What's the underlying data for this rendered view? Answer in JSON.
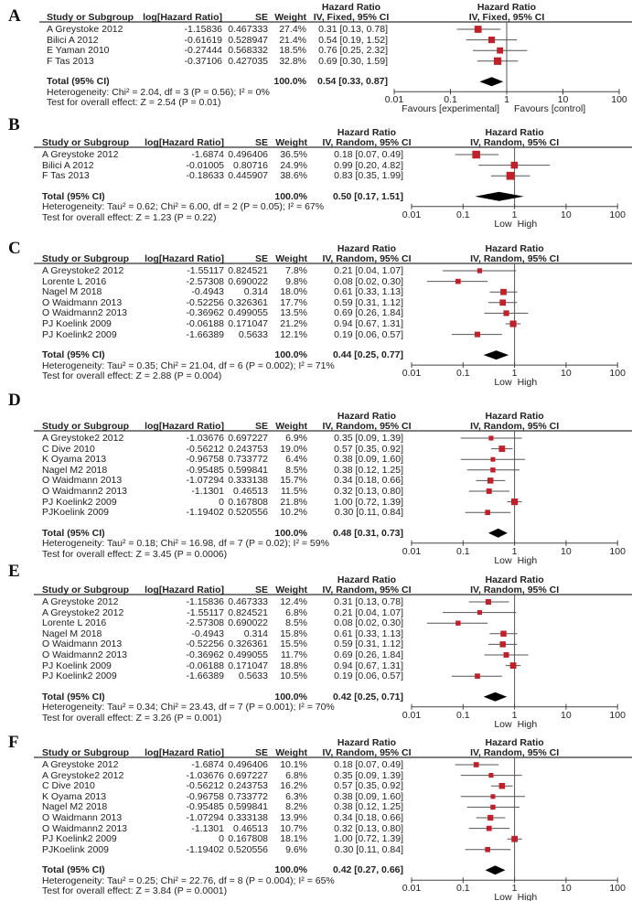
{
  "columns": {
    "study": "Study or Subgroup",
    "loghr": "log[Hazard Ratio]",
    "se": "SE",
    "weight": "Weight",
    "hr_title": "Hazard Ratio",
    "total_label": "Total (95% CI)"
  },
  "colors": {
    "square": "#c0202a",
    "ci_line": "#555555",
    "diamond": "#000000",
    "axis": "#444444"
  },
  "chart_data": [
    {
      "type": "forest",
      "letter": "A",
      "method": "IV, Fixed, 95% CI",
      "xscale": "log",
      "xlim": [
        0.01,
        100
      ],
      "ticks": [
        "0.01",
        "0.1",
        "1",
        "10",
        "100"
      ],
      "favours_left": "Favours [experimental]",
      "favours_right": "Favours [control]",
      "studies": [
        {
          "name": "A Greystoke 2012",
          "loghr": "-1.15836",
          "se": "0.467333",
          "weight": "27.4%",
          "ci": "0.31 [0.13, 0.78]"
        },
        {
          "name": "Bilici A 2012",
          "loghr": "-0.61619",
          "se": "0.528947",
          "weight": "21.4%",
          "ci": "0.54 [0.19, 1.52]"
        },
        {
          "name": "E Yaman 2010",
          "loghr": "-0.27444",
          "se": "0.568332",
          "weight": "18.5%",
          "ci": "0.76 [0.25, 2.32]"
        },
        {
          "name": "F Tas 2013",
          "loghr": "-0.37106",
          "se": "0.427035",
          "weight": "32.8%",
          "ci": "0.69 [0.30, 1.59]"
        }
      ],
      "total": {
        "weight": "100.0%",
        "ci": "0.54 [0.33, 0.87]"
      },
      "heterogeneity": "Heterogeneity: Chi² = 2.04, df = 3 (P = 0.56); I² = 0%",
      "overall": "Test for overall effect: Z = 2.54 (P = 0.01)"
    },
    {
      "type": "forest",
      "letter": "B",
      "method": "IV, Random, 95% CI",
      "xscale": "log",
      "xlim": [
        0.01,
        100
      ],
      "ticks": [
        "0.01",
        "0.1",
        "1",
        "10",
        "100"
      ],
      "favours_left": "Low",
      "favours_right": "High",
      "studies": [
        {
          "name": "A Greystoke 2012",
          "loghr": "-1.6874",
          "se": "0.496406",
          "weight": "36.5%",
          "ci": "0.18 [0.07, 0.49]"
        },
        {
          "name": "Bilici A 2012",
          "loghr": "-0.01005",
          "se": "0.80716",
          "weight": "24.9%",
          "ci": "0.99 [0.20, 4.82]"
        },
        {
          "name": "F Tas 2013",
          "loghr": "-0.18633",
          "se": "0.445907",
          "weight": "38.6%",
          "ci": "0.83 [0.35, 1.99]"
        }
      ],
      "total": {
        "weight": "100.0%",
        "ci": "0.50 [0.17, 1.51]"
      },
      "heterogeneity": "Heterogeneity: Tau² = 0.62; Chi² = 6.00, df = 2 (P = 0.05); I² = 67%",
      "overall": "Test for overall effect: Z = 1.23 (P = 0.22)"
    },
    {
      "type": "forest",
      "letter": "C",
      "method": "IV, Random, 95% CI",
      "xscale": "log",
      "xlim": [
        0.01,
        100
      ],
      "ticks": [
        "0.01",
        "0.1",
        "1",
        "10",
        "100"
      ],
      "favours_left": "Low",
      "favours_right": "High",
      "studies": [
        {
          "name": "A Greystoke2 2012",
          "loghr": "-1.55117",
          "se": "0.824521",
          "weight": "7.8%",
          "ci": "0.21 [0.04, 1.07]"
        },
        {
          "name": "Lorente L 2016",
          "loghr": "-2.57308",
          "se": "0.690022",
          "weight": "9.8%",
          "ci": "0.08 [0.02, 0.30]"
        },
        {
          "name": "Nagel M 2018",
          "loghr": "-0.4943",
          "se": "0.314",
          "weight": "18.0%",
          "ci": "0.61 [0.33, 1.13]"
        },
        {
          "name": "O Waidmann 2013",
          "loghr": "-0.52256",
          "se": "0.326361",
          "weight": "17.7%",
          "ci": "0.59 [0.31, 1.12]"
        },
        {
          "name": "O Waidmann2 2013",
          "loghr": "-0.36962",
          "se": "0.499055",
          "weight": "13.5%",
          "ci": "0.69 [0.26, 1.84]"
        },
        {
          "name": "PJ Koelink 2009",
          "loghr": "-0.06188",
          "se": "0.171047",
          "weight": "21.2%",
          "ci": "0.94 [0.67, 1.31]"
        },
        {
          "name": "PJ Koelink2 2009",
          "loghr": "-1.66389",
          "se": "0.5633",
          "weight": "12.1%",
          "ci": "0.19 [0.06, 0.57]"
        }
      ],
      "total": {
        "weight": "100.0%",
        "ci": "0.44 [0.25, 0.77]"
      },
      "heterogeneity": "Heterogeneity: Tau² = 0.35; Chi² = 21.04, df = 6 (P = 0.002); I² = 71%",
      "overall": "Test for overall effect: Z = 2.88 (P = 0.004)"
    },
    {
      "type": "forest",
      "letter": "D",
      "method": "IV, Random, 95% CI",
      "xscale": "log",
      "xlim": [
        0.01,
        100
      ],
      "ticks": [
        "0.01",
        "0.1",
        "1",
        "10",
        "100"
      ],
      "favours_left": "Low",
      "favours_right": "High",
      "studies": [
        {
          "name": "A Greystoke2 2012",
          "loghr": "-1.03676",
          "se": "0.697227",
          "weight": "6.9%",
          "ci": "0.35 [0.09, 1.39]"
        },
        {
          "name": "C Dive 2010",
          "loghr": "-0.56212",
          "se": "0.243753",
          "weight": "19.0%",
          "ci": "0.57 [0.35, 0.92]"
        },
        {
          "name": "K Oyama 2013",
          "loghr": "-0.96758",
          "se": "0.733772",
          "weight": "6.4%",
          "ci": "0.38 [0.09, 1.60]"
        },
        {
          "name": "Nagel M2 2018",
          "loghr": "-0.95485",
          "se": "0.599841",
          "weight": "8.5%",
          "ci": "0.38 [0.12, 1.25]"
        },
        {
          "name": "O Waidmann 2013",
          "loghr": "-1.07294",
          "se": "0.333138",
          "weight": "15.7%",
          "ci": "0.34 [0.18, 0.66]"
        },
        {
          "name": "O Waidmann2 2013",
          "loghr": "-1.1301",
          "se": "0.46513",
          "weight": "11.5%",
          "ci": "0.32 [0.13, 0.80]"
        },
        {
          "name": "PJ Koelink2 2009",
          "loghr": "0",
          "se": "0.167808",
          "weight": "21.8%",
          "ci": "1.00 [0.72, 1.39]"
        },
        {
          "name": "PJKoelink 2009",
          "loghr": "-1.19402",
          "se": "0.520556",
          "weight": "10.2%",
          "ci": "0.30 [0.11, 0.84]"
        }
      ],
      "total": {
        "weight": "100.0%",
        "ci": "0.48 [0.31, 0.73]"
      },
      "heterogeneity": "Heterogeneity: Tau² = 0.18; Chi² = 16.98, df = 7 (P = 0.02); I² = 59%",
      "overall": "Test for overall effect: Z = 3.45 (P = 0.0006)"
    },
    {
      "type": "forest",
      "letter": "E",
      "method": "IV, Random, 95% CI",
      "xscale": "log",
      "xlim": [
        0.01,
        100
      ],
      "ticks": [
        "0.01",
        "0.1",
        "1",
        "10",
        "100"
      ],
      "favours_left": "Low",
      "favours_right": "High",
      "studies": [
        {
          "name": "A Greystoke 2012",
          "loghr": "-1.15836",
          "se": "0.467333",
          "weight": "12.4%",
          "ci": "0.31 [0.13, 0.78]"
        },
        {
          "name": "A Greystoke2 2012",
          "loghr": "-1.55117",
          "se": "0.824521",
          "weight": "6.8%",
          "ci": "0.21 [0.04, 1.07]"
        },
        {
          "name": "Lorente L 2016",
          "loghr": "-2.57308",
          "se": "0.690022",
          "weight": "8.5%",
          "ci": "0.08 [0.02, 0.30]"
        },
        {
          "name": "Nagel M 2018",
          "loghr": "-0.4943",
          "se": "0.314",
          "weight": "15.8%",
          "ci": "0.61 [0.33, 1.13]"
        },
        {
          "name": "O Waidmann 2013",
          "loghr": "-0.52256",
          "se": "0.326361",
          "weight": "15.5%",
          "ci": "0.59 [0.31, 1.12]"
        },
        {
          "name": "O Waidmann2 2013",
          "loghr": "-0.36962",
          "se": "0.499055",
          "weight": "11.7%",
          "ci": "0.69 [0.26, 1.84]"
        },
        {
          "name": "PJ Koelink 2009",
          "loghr": "-0.06188",
          "se": "0.171047",
          "weight": "18.8%",
          "ci": "0.94 [0.67, 1.31]"
        },
        {
          "name": "PJ Koelink2 2009",
          "loghr": "-1.66389",
          "se": "0.5633",
          "weight": "10.5%",
          "ci": "0.19 [0.06, 0.57]"
        }
      ],
      "total": {
        "weight": "100.0%",
        "ci": "0.42 [0.25, 0.71]"
      },
      "heterogeneity": "Heterogeneity: Tau² = 0.34; Chi² = 23.43, df = 7 (P = 0.001); I² = 70%",
      "overall": "Test for overall effect: Z = 3.26 (P = 0.001)"
    },
    {
      "type": "forest",
      "letter": "F",
      "method": "IV, Random, 95% CI",
      "xscale": "log",
      "xlim": [
        0.01,
        100
      ],
      "ticks": [
        "0.01",
        "0.1",
        "1",
        "10",
        "100"
      ],
      "favours_left": "Low",
      "favours_right": "High",
      "studies": [
        {
          "name": "A Greystoke 2012",
          "loghr": "-1.6874",
          "se": "0.496406",
          "weight": "10.1%",
          "ci": "0.18 [0.07, 0.49]"
        },
        {
          "name": "A Greystoke2 2012",
          "loghr": "-1.03676",
          "se": "0.697227",
          "weight": "6.8%",
          "ci": "0.35 [0.09, 1.39]"
        },
        {
          "name": "C Dive 2010",
          "loghr": "-0.56212",
          "se": "0.243753",
          "weight": "16.2%",
          "ci": "0.57 [0.35, 0.92]"
        },
        {
          "name": "K Oyama 2013",
          "loghr": "-0.96758",
          "se": "0.733772",
          "weight": "6.3%",
          "ci": "0.38 [0.09, 1.60]"
        },
        {
          "name": "Nagel M2 2018",
          "loghr": "-0.95485",
          "se": "0.599841",
          "weight": "8.2%",
          "ci": "0.38 [0.12, 1.25]"
        },
        {
          "name": "O Waidmann 2013",
          "loghr": "-1.07294",
          "se": "0.333138",
          "weight": "13.9%",
          "ci": "0.34 [0.18, 0.66]"
        },
        {
          "name": "O Waidmann2 2013",
          "loghr": "-1.1301",
          "se": "0.46513",
          "weight": "10.7%",
          "ci": "0.32 [0.13, 0.80]"
        },
        {
          "name": "PJ Koelink2 2009",
          "loghr": "0",
          "se": "0.167808",
          "weight": "18.1%",
          "ci": "1.00 [0.72, 1.39]"
        },
        {
          "name": "PJKoelink 2009",
          "loghr": "-1.19402",
          "se": "0.520556",
          "weight": "9.6%",
          "ci": "0.30 [0.11, 0.84]"
        }
      ],
      "total": {
        "weight": "100.0%",
        "ci": "0.42 [0.27, 0.66]"
      },
      "heterogeneity": "Heterogeneity: Tau² = 0.25; Chi² = 22.76, df = 8 (P = 0.004); I² = 65%",
      "overall": "Test for overall effect: Z = 3.84 (P = 0.0001)"
    }
  ]
}
